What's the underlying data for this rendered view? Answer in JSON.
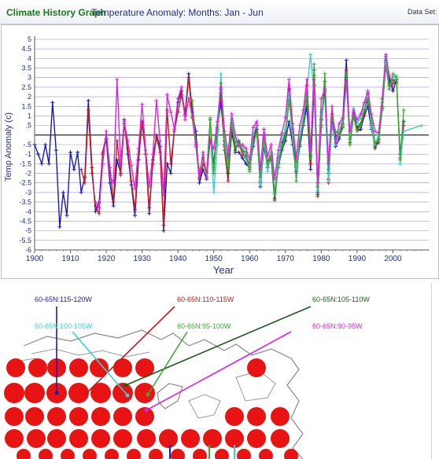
{
  "header": {
    "app_title": "Climate History Graph",
    "subtitle": "Temperature Anomaly: Months: Jan - Jun",
    "dataset_label": "Data Set: H"
  },
  "colors": {
    "blue": "#1a1ab8",
    "red": "#c81a1a",
    "dark_green": "#1e5a1e",
    "cyan": "#3ccece",
    "green": "#3caa2e",
    "magenta": "#e020e0",
    "grid": "#3a3ab0",
    "dot": "#e81414",
    "land_outline": "#888888"
  },
  "chart_data": {
    "type": "line",
    "title": "",
    "xlabel": "Year",
    "ylabel": "Temp Anomaly (c)",
    "xlim": [
      1900,
      2010
    ],
    "ylim": [
      -6,
      5
    ],
    "x_ticks": [
      1900,
      1910,
      1920,
      1930,
      1940,
      1950,
      1960,
      1970,
      1980,
      1990,
      2000
    ],
    "y_ticks": [
      5,
      4.5,
      4,
      3.5,
      3,
      2.5,
      2,
      1.5,
      1,
      0.5,
      -0.5,
      -1,
      -1.5,
      -2,
      -2.5,
      -3,
      -3.5,
      -4,
      -4.5,
      -5,
      -5.5,
      -6
    ],
    "y_tick_labels": [
      "5",
      "4.5",
      "4",
      "3.5",
      "3",
      "2.5",
      "2",
      "1.5",
      "1",
      ".5",
      "-.5",
      "-1",
      "-1.5",
      "-2",
      "-2.5",
      "-3",
      "-3.5",
      "-4",
      "-4.5",
      "-5",
      "-5.5",
      "-6"
    ],
    "grid": true,
    "zero_line": true,
    "series": [
      {
        "name": "60-65N:115-120W",
        "color": "#1a1ab8",
        "x": [
          1900,
          1901,
          1902,
          1903,
          1904,
          1905,
          1906,
          1907,
          1908,
          1909,
          1910,
          1911,
          1912,
          1913,
          1914,
          1915,
          1916,
          1917,
          1918,
          1919,
          1920,
          1921,
          1922,
          1923,
          1924,
          1925,
          1926,
          1927,
          1928,
          1929,
          1930,
          1931,
          1932,
          1933,
          1934,
          1935,
          1936,
          1937,
          1938,
          1939,
          1940,
          1941,
          1942,
          1943,
          1944,
          1945,
          1946,
          1947,
          1948,
          1949,
          1950,
          1951,
          1952,
          1953,
          1954,
          1955,
          1956,
          1957,
          1958,
          1959,
          1960,
          1961,
          1962,
          1963,
          1964,
          1965,
          1966,
          1967,
          1968,
          1969,
          1970,
          1971,
          1972,
          1973,
          1974,
          1975,
          1976,
          1977,
          1978,
          1979,
          1980,
          1981,
          1982,
          1983,
          1984,
          1985,
          1986,
          1987,
          1988,
          1989,
          1990,
          1991,
          1992,
          1993,
          1994,
          1995,
          1996,
          1997,
          1998,
          1999,
          2000,
          2001,
          2002,
          2003
        ],
        "y": [
          -0.5,
          -1,
          -1.5,
          -0.5,
          -1.5,
          1.7,
          -0.8,
          -4.8,
          -3,
          -4.2,
          -0.9,
          -1.8,
          -0.9,
          -3,
          -2.2,
          1.8,
          -1.7,
          -4,
          -3.5,
          -1,
          -0.2,
          -2.5,
          -3.7,
          -1.3,
          -2,
          0.8,
          -1,
          -2.6,
          -4.2,
          -1.3,
          0.7,
          -1,
          -4.1,
          -1.3,
          0,
          -0.6,
          -5,
          -1.5,
          -2,
          0.3,
          1.7,
          2.3,
          1.1,
          3.2,
          1.2,
          0.2,
          -2.5,
          -1.8,
          -2.3,
          0,
          -1.5,
          0.3,
          1.7,
          -0.5,
          -1.2,
          0.4,
          -0.9,
          -0.9,
          -1.2,
          -1.5,
          -1.7,
          -0.6,
          0.3,
          -2.7,
          -0.6,
          -1.7,
          -0.9,
          -3.1,
          -1.7,
          -0.8,
          -0.3,
          0.7,
          -0.5,
          -1.9,
          -0.6,
          0.5,
          1.5,
          -1.8,
          2.6,
          -3,
          0.8,
          2.3,
          -2.3,
          0.7,
          -0.6,
          -0.2,
          0.9,
          3.9,
          -0.5,
          1,
          0.2,
          0.3,
          1,
          1.5,
          0.3,
          -0.5,
          -0.3,
          1.4,
          3.8,
          2.9,
          2.3,
          2.9,
          -1,
          0.7
        ]
      },
      {
        "name": "60-65N:110-115W",
        "color": "#c81a1a",
        "x": [
          1913,
          1914,
          1915,
          1916,
          1917,
          1918,
          1919,
          1920,
          1921,
          1922,
          1923,
          1924,
          1925,
          1926,
          1927,
          1928,
          1929,
          1930,
          1931,
          1932,
          1933,
          1934,
          1935,
          1936,
          1937,
          1938,
          1939,
          1940,
          1941,
          1942,
          1943,
          1944,
          1945,
          1946,
          1947,
          1948,
          1949,
          1950,
          1951,
          1952,
          1953,
          1954,
          1955,
          1956,
          1957,
          1958,
          1959,
          1960,
          1961,
          1962,
          1963,
          1964,
          1965,
          1966,
          1967,
          1968,
          1969,
          1970,
          1971,
          1972,
          1973,
          1974,
          1975,
          1976,
          1977,
          1978,
          1979,
          1980,
          1981,
          1982,
          1983,
          1984,
          1985,
          1986,
          1987,
          1988,
          1989,
          1990,
          1991,
          1992,
          1993,
          1994,
          1995,
          1996,
          1997,
          1998,
          1999,
          2000,
          2001,
          2002,
          2003
        ],
        "y": [
          -1.8,
          -2.5,
          1.3,
          -2,
          -3.7,
          -4.1,
          -0.9,
          0,
          -1.7,
          -3.5,
          -0.3,
          -2.1,
          0.6,
          -0.7,
          -2.4,
          -3.9,
          -1,
          0.6,
          -1,
          -3.8,
          -1.5,
          -0.1,
          -0.9,
          -4.7,
          1.3,
          -1.5,
          0.2,
          1.2,
          2.1,
          1,
          3,
          0.9,
          -0.5,
          -2.3,
          -1.5,
          -1.9,
          0.2,
          -1.8,
          0.4,
          2.2,
          -0.8,
          -2.4,
          0.3,
          -0.4,
          -0.4,
          -1,
          -1.2,
          -1.5,
          -0.2,
          0.5,
          -2.4,
          -0.4,
          -1.4,
          -1,
          -3.3,
          -1.2,
          -0.5,
          0.1,
          2,
          0.2,
          -1.7,
          -0.2,
          0.9,
          2.6,
          -1.5,
          3.1,
          -3.2,
          0.5,
          2.8,
          -2.5,
          1.1,
          -0.2,
          0.2,
          0.6,
          3.4,
          -0.2,
          1.1,
          0.3,
          0.5,
          1.1,
          2.2,
          0.5,
          -0.6,
          -0.4,
          1.5,
          4.1,
          2.6,
          2.7,
          2.8,
          -1.2,
          0.5
        ]
      },
      {
        "name": "60-65N:105-110W",
        "color": "#1e5a1e",
        "x": [
          1949,
          1950,
          1951,
          1952,
          1953,
          1954,
          1955,
          1956,
          1957,
          1958,
          1959,
          1960,
          1961,
          1962,
          1963,
          1964,
          1965,
          1966,
          1967,
          1968,
          1969,
          1970,
          1971,
          1972,
          1973,
          1974,
          1975,
          1976,
          1977,
          1978,
          1979,
          1980,
          1981,
          1982,
          1983,
          1984,
          1985,
          1986,
          1987,
          1988,
          1989,
          1990,
          1991,
          1992,
          1993,
          1994,
          1995,
          1996,
          1997,
          1998,
          1999,
          2000,
          2001
        ],
        "y": [
          0.8,
          -1.7,
          0.2,
          2.4,
          -0.3,
          -2,
          0.1,
          -0.8,
          -0.3,
          -0.8,
          -1.1,
          -1.8,
          -0.3,
          0.3,
          -2.5,
          -0.2,
          -1.7,
          -1.2,
          -3.4,
          -1.5,
          -0.4,
          0,
          2.4,
          0.1,
          -1.6,
          -0.5,
          0.7,
          2,
          -1.1,
          3.4,
          -3.1,
          0.8,
          2.4,
          -2,
          0.8,
          0,
          -0.1,
          0.4,
          3,
          -0.4,
          1.2,
          0.4,
          0.6,
          1.3,
          1.8,
          0.6,
          -0.7,
          -0.2,
          1.4,
          3.9,
          2.7,
          2.9,
          2.7
        ]
      },
      {
        "name": "60-65N:100-105W",
        "color": "#3ccece",
        "x": [
          1949,
          1950,
          1951,
          1952,
          1953,
          1954,
          1955,
          1956,
          1957,
          1958,
          1959,
          1960,
          1961,
          1962,
          1963,
          1964,
          1965,
          1966,
          1967,
          1968,
          1969,
          1970,
          1971,
          1972,
          1973,
          1974,
          1975,
          1976,
          1977,
          1978,
          1979,
          1980,
          1981,
          1982,
          1983,
          1984,
          1985,
          1986,
          1987,
          1988,
          1989,
          1990,
          1991,
          1992,
          1993,
          1994,
          1995,
          1996,
          1997,
          1998,
          1999,
          2000,
          2001,
          2002,
          2003,
          2008
        ],
        "y": [
          0.2,
          -3,
          -0.5,
          3.2,
          -0.1,
          -1.6,
          0.8,
          -0.2,
          -0.6,
          -0.5,
          -1.3,
          -1.7,
          0,
          0.6,
          -2.6,
          -0.3,
          -1.9,
          -0.9,
          -3.1,
          -1.3,
          -0.2,
          0.3,
          2.2,
          -0.3,
          -1.8,
          -0.1,
          1,
          2.3,
          4.2,
          2.1,
          -2.9,
          1.2,
          1.9,
          -2.4,
          0.5,
          -0.5,
          0.2,
          0.8,
          2.7,
          -0.2,
          1.4,
          0.6,
          0.9,
          1.6,
          2.1,
          0.4,
          -0.5,
          0,
          1.7,
          4,
          2.4,
          3,
          3.1,
          -1.5,
          0.2,
          0.5
        ]
      },
      {
        "name": "60-65N:95-100W",
        "color": "#3caa2e",
        "x": [
          1944,
          1945,
          1946,
          1947,
          1948,
          1949,
          1950,
          1951,
          1952,
          1953,
          1954,
          1955,
          1956,
          1957,
          1958,
          1959,
          1960,
          1961,
          1962,
          1963,
          1964,
          1965,
          1966,
          1967,
          1968,
          1969,
          1970,
          1971,
          1972,
          1973,
          1974,
          1975,
          1976,
          1977,
          1978,
          1979,
          1980,
          1981,
          1982,
          1983,
          1984,
          1985,
          1986,
          1987,
          1988,
          1989,
          1990,
          1991,
          1992,
          1993,
          1994,
          1995,
          1996,
          1997,
          1998,
          1999,
          2000,
          2001,
          2002,
          2003
        ],
        "y": [
          1.8,
          -0.4,
          -1.9,
          -1.2,
          -2,
          0.9,
          -2,
          0.7,
          2.7,
          -0.6,
          -1.8,
          0.6,
          -0.6,
          -0.4,
          -0.8,
          -0.9,
          -1.9,
          -0.4,
          0.1,
          -2.2,
          -0.1,
          -1.5,
          -1.1,
          -3,
          -1.7,
          -0.6,
          -0.1,
          1.8,
          0.3,
          -2.4,
          -0.3,
          0.6,
          2.2,
          -1.2,
          3.7,
          -2.7,
          0.4,
          3.2,
          -1.8,
          0.9,
          0.2,
          0,
          0.5,
          3.2,
          -0.5,
          1,
          0.2,
          0.5,
          1.3,
          1.9,
          0.8,
          -0.4,
          -0.3,
          1.3,
          3.6,
          2.4,
          3.2,
          3,
          -1.3,
          1.3
        ]
      },
      {
        "name": "60-65N:90-95W",
        "color": "#e020e0",
        "x": [
          1917,
          1918,
          1919,
          1920,
          1921,
          1922,
          1923,
          1924,
          1925,
          1926,
          1927,
          1928,
          1929,
          1930,
          1931,
          1932,
          1933,
          1934,
          1935,
          1936,
          1937,
          1938,
          1939,
          1940,
          1941,
          1942,
          1943,
          1944,
          1945,
          1946,
          1947,
          1948,
          1949,
          1950,
          1951,
          1952,
          1953,
          1954,
          1955,
          1956,
          1957,
          1958,
          1959,
          1960,
          1961,
          1962,
          1963,
          1964,
          1965,
          1966,
          1967,
          1968,
          1969,
          1970,
          1971,
          1972,
          1973,
          1974,
          1975,
          1976,
          1977,
          1978,
          1979,
          1980,
          1981,
          1982,
          1983,
          1984,
          1985,
          1986,
          1987,
          1988,
          1989,
          1990,
          1991,
          1992,
          1993,
          1994,
          1995,
          1996,
          1997,
          1998,
          1999,
          2000
        ],
        "y": [
          -3.5,
          -3.8,
          -1.5,
          0.2,
          -2.1,
          -2.5,
          2.9,
          -1.5,
          0.7,
          -0.3,
          -1.6,
          -2.8,
          -0.7,
          1.6,
          -0.8,
          -2.7,
          -1,
          1.8,
          -0.3,
          -3.1,
          2.1,
          1.2,
          0.3,
          1.9,
          2.5,
          0.8,
          1.9,
          1,
          -0.6,
          -2.2,
          -0.9,
          -2.2,
          -0.3,
          -0.7,
          0.7,
          2.5,
          0.2,
          -1,
          1.1,
          0,
          -0.6,
          -0.5,
          -0.7,
          -1.3,
          0.4,
          0.7,
          -1.8,
          0.3,
          -1.1,
          -0.5,
          -2.3,
          -0.8,
          0.1,
          0.9,
          2.9,
          0.6,
          -1.2,
          0.5,
          1.3,
          2.9,
          -0.8,
          2.9,
          -2.5,
          1.9,
          2.4,
          -1.5,
          1.5,
          -0.4,
          0.6,
          0.9,
          2.8,
          0.2,
          1.3,
          0.8,
          1.1,
          1.7,
          2.3,
          1.1,
          0.2,
          0.1,
          1.9,
          4.2,
          3.1,
          2.5
        ]
      }
    ]
  },
  "map": {
    "legend": [
      {
        "label": "60-65N:115-120W",
        "color": "#1a1ab8"
      },
      {
        "label": "60-65N:110-115W",
        "color": "#c81a1a"
      },
      {
        "label": "60-65N:105-110W",
        "color": "#1e5a1e"
      },
      {
        "label": "60-65N:100-105W",
        "color": "#3ccece"
      },
      {
        "label": "60-65N:95-100W",
        "color": "#3caa2e"
      },
      {
        "label": "60-65N:90-95W",
        "color": "#e020e0"
      }
    ]
  }
}
